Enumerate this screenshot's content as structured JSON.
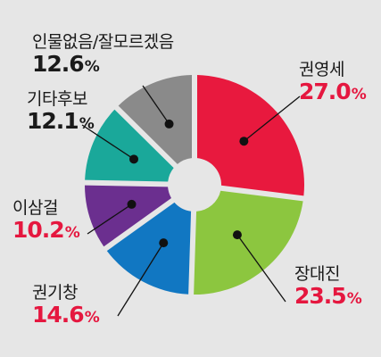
{
  "chart_data": {
    "type": "pie",
    "donut": true,
    "unit": "%",
    "slices": [
      {
        "label": "권영세",
        "value": 27.0,
        "display": "27.0",
        "color": "#e8193e",
        "highlight": true
      },
      {
        "label": "장대진",
        "value": 23.5,
        "display": "23.5",
        "color": "#8cc63f",
        "highlight": true
      },
      {
        "label": "권기창",
        "value": 14.6,
        "display": "14.6",
        "color": "#1177c2",
        "highlight": true
      },
      {
        "label": "이삼걸",
        "value": 10.2,
        "display": "10.2",
        "color": "#6b2f8f",
        "highlight": true
      },
      {
        "label": "기타후보",
        "value": 12.1,
        "display": "12.1",
        "color": "#1aa89a",
        "highlight": false
      },
      {
        "label": "인물없음/잘모르겠음",
        "value": 12.6,
        "display": "12.6",
        "color": "#8a8a8a",
        "highlight": false
      }
    ]
  }
}
